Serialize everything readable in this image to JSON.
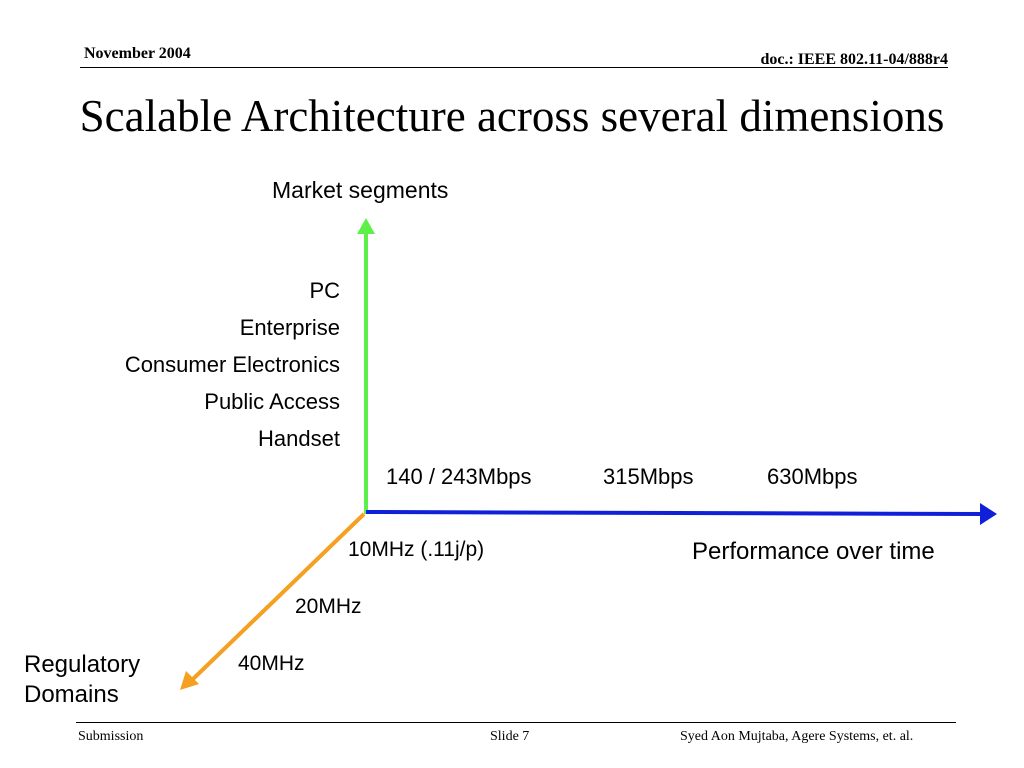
{
  "header": {
    "date": "November 2004",
    "doc_id": "doc.: IEEE 802.11-04/888r4"
  },
  "title": "Scalable Architecture across several dimensions",
  "diagram": {
    "market_axis": {
      "label": "Market segments",
      "color": "#5ef04a",
      "items": [
        "PC",
        "Enterprise",
        "Consumer Electronics",
        "Public Access",
        "Handset"
      ]
    },
    "performance_axis": {
      "label": "Performance over time",
      "color": "#1020d8",
      "ticks": [
        "140 / 243Mbps",
        "315Mbps",
        "630Mbps"
      ]
    },
    "regulatory_axis": {
      "label_line1": "Regulatory",
      "label_line2": "Domains",
      "color": "#f5a020",
      "ticks": [
        "10MHz (.11j/p)",
        "20MHz",
        "40MHz"
      ]
    }
  },
  "footer": {
    "left": "Submission",
    "middle": "Slide 7",
    "right": "Syed Aon Mujtaba, Agere Systems, et. al."
  }
}
